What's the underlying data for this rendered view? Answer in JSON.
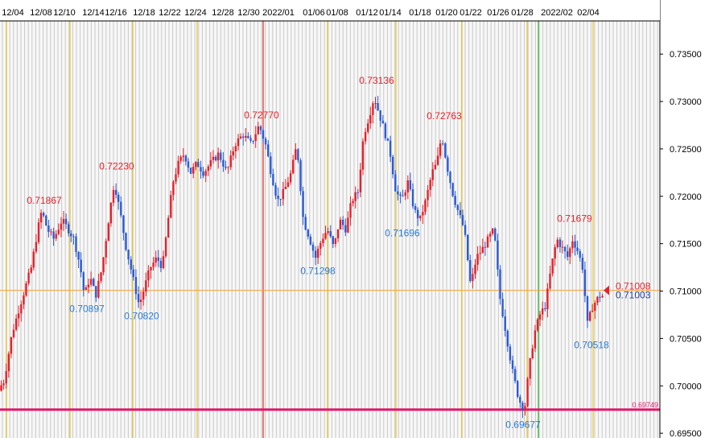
{
  "chart_data": {
    "type": "candlestick",
    "ylim": [
      0.6945,
      0.7385
    ],
    "y_ticks": [
      "0.73500",
      "0.73000",
      "0.72500",
      "0.72000",
      "0.71500",
      "0.71000",
      "0.70500",
      "0.70000",
      "0.69500"
    ],
    "y_tick_values": [
      0.735,
      0.73,
      0.725,
      0.72,
      0.715,
      0.71,
      0.705,
      0.7,
      0.695
    ],
    "x_labels": [
      "12/04",
      "12/08",
      "12/10",
      "12/14",
      "12/16",
      "12/18",
      "12/22",
      "12/24",
      "12/28",
      "12/30",
      "2022/01",
      "01/06",
      "01/08",
      "01/12",
      "01/14",
      "01/18",
      "01/20",
      "01/22",
      "01/26",
      "01/28",
      "2022/02",
      "02/04"
    ],
    "highs": [
      {
        "label": "0.71867",
        "x": 55,
        "y": 0.7187
      },
      {
        "label": "0.72230",
        "x": 145,
        "y": 0.7223
      },
      {
        "label": "0.72770",
        "x": 325,
        "y": 0.7277
      },
      {
        "label": "0.73136",
        "x": 468,
        "y": 0.73136
      },
      {
        "label": "0.72763",
        "x": 552,
        "y": 0.72763
      },
      {
        "label": "0.71679",
        "x": 714,
        "y": 0.71679
      }
    ],
    "lows": [
      {
        "label": "0.70897",
        "x": 108,
        "y": 0.70897
      },
      {
        "label": "0.70820",
        "x": 176,
        "y": 0.7082
      },
      {
        "label": "0.71298",
        "x": 395,
        "y": 0.71298
      },
      {
        "label": "0.71696",
        "x": 500,
        "y": 0.71696
      },
      {
        "label": "0.69677",
        "x": 650,
        "y": 0.69677
      },
      {
        "label": "0.70518",
        "x": 735,
        "y": 0.70518
      }
    ],
    "path": [
      [
        0,
        0.6995
      ],
      [
        8,
        0.7005
      ],
      [
        18,
        0.7055
      ],
      [
        28,
        0.7085
      ],
      [
        35,
        0.7105
      ],
      [
        42,
        0.7125
      ],
      [
        50,
        0.7165
      ],
      [
        55,
        0.7185
      ],
      [
        62,
        0.7165
      ],
      [
        70,
        0.7155
      ],
      [
        80,
        0.7175
      ],
      [
        88,
        0.7165
      ],
      [
        95,
        0.7155
      ],
      [
        103,
        0.7125
      ],
      [
        108,
        0.7095
      ],
      [
        115,
        0.7115
      ],
      [
        122,
        0.7095
      ],
      [
        130,
        0.7125
      ],
      [
        138,
        0.7175
      ],
      [
        145,
        0.7215
      ],
      [
        152,
        0.7185
      ],
      [
        160,
        0.7145
      ],
      [
        168,
        0.7115
      ],
      [
        176,
        0.7085
      ],
      [
        183,
        0.7105
      ],
      [
        190,
        0.7125
      ],
      [
        198,
        0.7135
      ],
      [
        205,
        0.7125
      ],
      [
        212,
        0.7175
      ],
      [
        218,
        0.7215
      ],
      [
        225,
        0.7235
      ],
      [
        232,
        0.7245
      ],
      [
        240,
        0.7225
      ],
      [
        248,
        0.7235
      ],
      [
        256,
        0.7225
      ],
      [
        265,
        0.7235
      ],
      [
        275,
        0.7245
      ],
      [
        285,
        0.7225
      ],
      [
        295,
        0.7255
      ],
      [
        305,
        0.7265
      ],
      [
        315,
        0.7255
      ],
      [
        325,
        0.7275
      ],
      [
        333,
        0.7255
      ],
      [
        340,
        0.7225
      ],
      [
        348,
        0.7195
      ],
      [
        356,
        0.7205
      ],
      [
        365,
        0.7225
      ],
      [
        372,
        0.7255
      ],
      [
        380,
        0.7175
      ],
      [
        388,
        0.7155
      ],
      [
        395,
        0.7135
      ],
      [
        403,
        0.7155
      ],
      [
        410,
        0.7165
      ],
      [
        418,
        0.7145
      ],
      [
        425,
        0.7175
      ],
      [
        433,
        0.7165
      ],
      [
        440,
        0.7195
      ],
      [
        448,
        0.7205
      ],
      [
        455,
        0.7265
      ],
      [
        462,
        0.7285
      ],
      [
        468,
        0.7305
      ],
      [
        475,
        0.7285
      ],
      [
        482,
        0.7265
      ],
      [
        488,
        0.7245
      ],
      [
        495,
        0.7205
      ],
      [
        502,
        0.7195
      ],
      [
        510,
        0.7215
      ],
      [
        518,
        0.7185
      ],
      [
        525,
        0.7175
      ],
      [
        532,
        0.7195
      ],
      [
        540,
        0.7225
      ],
      [
        546,
        0.7235
      ],
      [
        552,
        0.7265
      ],
      [
        558,
        0.7235
      ],
      [
        565,
        0.7205
      ],
      [
        572,
        0.7185
      ],
      [
        580,
        0.7165
      ],
      [
        588,
        0.7105
      ],
      [
        595,
        0.7135
      ],
      [
        603,
        0.7145
      ],
      [
        610,
        0.7155
      ],
      [
        617,
        0.7165
      ],
      [
        624,
        0.7095
      ],
      [
        632,
        0.7055
      ],
      [
        640,
        0.7015
      ],
      [
        648,
        0.6985
      ],
      [
        655,
        0.6975
      ],
      [
        660,
        0.7015
      ],
      [
        667,
        0.7055
      ],
      [
        674,
        0.7075
      ],
      [
        681,
        0.7085
      ],
      [
        688,
        0.7125
      ],
      [
        695,
        0.7155
      ],
      [
        702,
        0.7145
      ],
      [
        709,
        0.7135
      ],
      [
        714,
        0.7155
      ],
      [
        720,
        0.7145
      ],
      [
        727,
        0.7125
      ],
      [
        733,
        0.7065
      ],
      [
        740,
        0.7085
      ],
      [
        748,
        0.7095
      ]
    ],
    "grid": true,
    "reference_lines": [
      {
        "label": "0.71008",
        "y": 0.71008,
        "color": "#f3a23a"
      },
      {
        "label": "0.69749",
        "y": 0.69749,
        "color": "#e0186c"
      }
    ],
    "last_prices": {
      "bid": "0.71008",
      "ask": "0.71003"
    },
    "colors": {
      "up": "#e8202a",
      "down": "#2a5bd8",
      "gold": "#e6c229",
      "red": "#e43a2a",
      "green": "#33bb33"
    }
  }
}
